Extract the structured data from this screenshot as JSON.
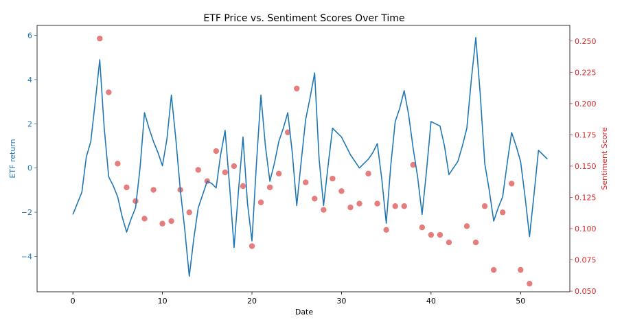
{
  "chart_data": {
    "type": "line+scatter",
    "title": "ETF Price vs. Sentiment Scores Over Time",
    "xlabel": "Date",
    "xlim": [
      -4,
      55.5
    ],
    "xticks": [
      0,
      10,
      20,
      30,
      40,
      50
    ],
    "left_axis": {
      "label": "ETF return",
      "color": "#1f77b4",
      "ylim": [
        -5.6,
        6.45
      ],
      "ticks": [
        -4,
        -2,
        0,
        2,
        4,
        6
      ]
    },
    "right_axis": {
      "label": "Sentiment Score",
      "color": "#d62728",
      "ylim": [
        0.0495,
        0.2625
      ],
      "ticks": [
        0.05,
        0.075,
        0.1,
        0.125,
        0.15,
        0.175,
        0.2,
        0.225,
        0.25
      ]
    },
    "line_series": {
      "color": "#1f77b4",
      "x": [
        0,
        0.5,
        1,
        1.5,
        2,
        2.5,
        3,
        3.5,
        4,
        4.5,
        5,
        5.5,
        6,
        6.5,
        7,
        7.5,
        8,
        8.5,
        9,
        9.5,
        10,
        10.5,
        11,
        11.5,
        12,
        12.5,
        13,
        13.5,
        14,
        14.5,
        15,
        15.5,
        16,
        16.5,
        17,
        17.5,
        18,
        18.5,
        19,
        19.5,
        20,
        20.5,
        21,
        21.5,
        22,
        22.5,
        23,
        23.5,
        24,
        24.5,
        25,
        25.5,
        26,
        26.5,
        27,
        27.5,
        28,
        28.5,
        29,
        29.5,
        30,
        30.5,
        31,
        31.5,
        32,
        32.5,
        33,
        33.5,
        34,
        34.5,
        35,
        35.5,
        36,
        36.5,
        37,
        37.5,
        38,
        38.5,
        39,
        39.5,
        40,
        40.5,
        41,
        41.5,
        42,
        42.5,
        43,
        43.5,
        44,
        44.5,
        45,
        45.5,
        46,
        46.5,
        47,
        47.5,
        48,
        48.5,
        49,
        49.5,
        50,
        50.5,
        51,
        51.5,
        52,
        52.5,
        53
      ],
      "y": [
        -2.1,
        -1.6,
        -1.1,
        0.5,
        1.2,
        3.0,
        4.9,
        1.8,
        -0.4,
        -0.8,
        -1.3,
        -2.2,
        -2.9,
        -2.3,
        -1.8,
        0.0,
        2.5,
        1.8,
        1.2,
        0.7,
        0.1,
        1.3,
        3.3,
        1.3,
        -1.0,
        -2.8,
        -4.9,
        -3.2,
        -1.8,
        -1.2,
        -0.6,
        -0.7,
        -0.9,
        0.6,
        1.7,
        -0.8,
        -3.6,
        -1.0,
        1.4,
        -1.6,
        -3.3,
        0.2,
        3.3,
        1.0,
        -0.6,
        0.2,
        1.2,
        1.8,
        2.5,
        0.7,
        -1.7,
        0.3,
        2.2,
        3.2,
        4.3,
        0.4,
        -1.7,
        0.1,
        1.8,
        1.6,
        1.4,
        1.0,
        0.6,
        0.3,
        0.0,
        0.2,
        0.4,
        0.7,
        1.1,
        -0.5,
        -2.5,
        0.1,
        2.1,
        2.7,
        3.5,
        2.4,
        0.9,
        -0.4,
        -2.1,
        -0.1,
        2.1,
        2.0,
        1.9,
        1.0,
        -0.3,
        0.0,
        0.3,
        1.0,
        1.8,
        4.0,
        5.9,
        3.3,
        0.2,
        -1.0,
        -2.4,
        -1.8,
        -1.3,
        0.2,
        1.6,
        1.0,
        0.3,
        -1.3,
        -3.1,
        -1.2,
        0.8,
        0.6,
        0.4
      ]
    },
    "scatter_series": {
      "color": "#e06666",
      "points": [
        [
          3,
          0.252
        ],
        [
          4,
          0.209
        ],
        [
          5,
          0.152
        ],
        [
          6,
          0.133
        ],
        [
          7,
          0.122
        ],
        [
          8,
          0.108
        ],
        [
          9,
          0.131
        ],
        [
          10,
          0.104
        ],
        [
          11,
          0.106
        ],
        [
          12,
          0.131
        ],
        [
          13,
          0.113
        ],
        [
          14,
          0.147
        ],
        [
          15,
          0.138
        ],
        [
          16,
          0.162
        ],
        [
          17,
          0.145
        ],
        [
          18,
          0.15
        ],
        [
          19,
          0.134
        ],
        [
          20,
          0.086
        ],
        [
          21,
          0.121
        ],
        [
          22,
          0.133
        ],
        [
          23,
          0.144
        ],
        [
          24,
          0.177
        ],
        [
          25,
          0.212
        ],
        [
          26,
          0.137
        ],
        [
          27,
          0.124
        ],
        [
          28,
          0.115
        ],
        [
          29,
          0.14
        ],
        [
          30,
          0.13
        ],
        [
          31,
          0.117
        ],
        [
          32,
          0.12
        ],
        [
          33,
          0.144
        ],
        [
          34,
          0.12
        ],
        [
          35,
          0.099
        ],
        [
          36,
          0.118
        ],
        [
          37,
          0.118
        ],
        [
          38,
          0.151
        ],
        [
          39,
          0.101
        ],
        [
          40,
          0.095
        ],
        [
          41,
          0.095
        ],
        [
          42,
          0.089
        ],
        [
          44,
          0.102
        ],
        [
          45,
          0.089
        ],
        [
          46,
          0.118
        ],
        [
          47,
          0.067
        ],
        [
          48,
          0.113
        ],
        [
          49,
          0.136
        ],
        [
          50,
          0.067
        ],
        [
          51,
          0.056
        ]
      ]
    }
  }
}
